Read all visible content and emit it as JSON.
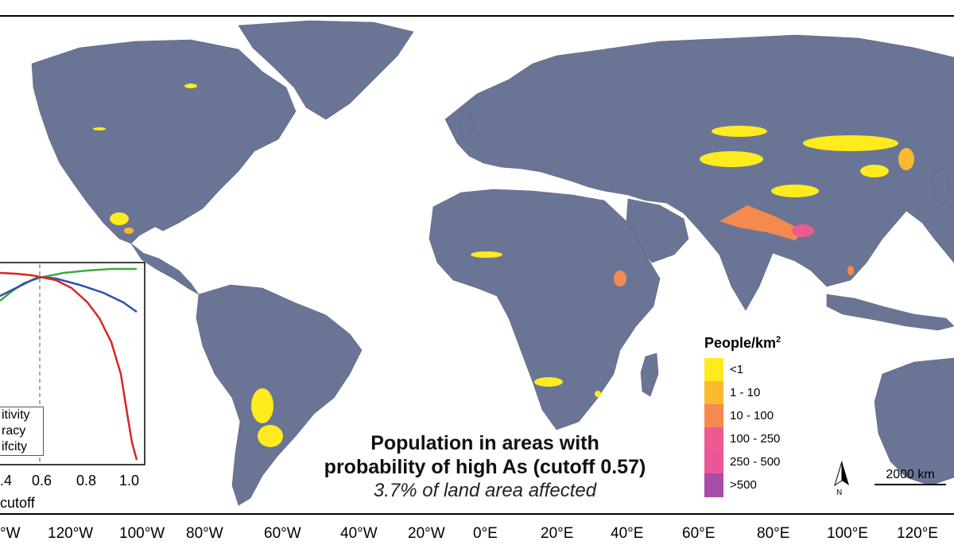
{
  "map": {
    "land_color": "#6A7596",
    "ocean_color": "#ffffff",
    "title_lines": [
      "Population in areas with",
      "probability of high As (cutoff 0.57)"
    ],
    "subtitle": "3.7% of land area affected",
    "scale_bar_label": "2000 km",
    "north_arrow_label": "N",
    "longitude_labels": [
      "°W",
      "120°W",
      "100°W",
      "80°W",
      "60°W",
      "40°W",
      "20°W",
      "0°E",
      "20°E",
      "40°E",
      "60°E",
      "80°E",
      "100°E",
      "120°E"
    ]
  },
  "legend": {
    "title": "People/km",
    "title_sup": "2",
    "items": [
      {
        "label": "<1",
        "color": "#FFEB1E"
      },
      {
        "label": "1 - 10",
        "color": "#FBB92E"
      },
      {
        "label": "10 - 100",
        "color": "#F58A4E"
      },
      {
        "label": "100 - 250",
        "color": "#EC5B8F"
      },
      {
        "label": "250 - 500",
        "color": "#E9579A"
      },
      {
        "label": ">500",
        "color": "#A84CA6"
      }
    ]
  },
  "inset": {
    "x_tick_labels": [
      ".4",
      "0.6",
      "0.8",
      "1.0"
    ],
    "x_label": "cutoff",
    "legend_entries": [
      {
        "label": "itivity",
        "color": "#2B4FB4"
      },
      {
        "label": "racy",
        "color": "#3DAA3D"
      },
      {
        "label": "ifcity",
        "color": "#D82626"
      }
    ],
    "cutoff_marker": 0.57
  }
}
